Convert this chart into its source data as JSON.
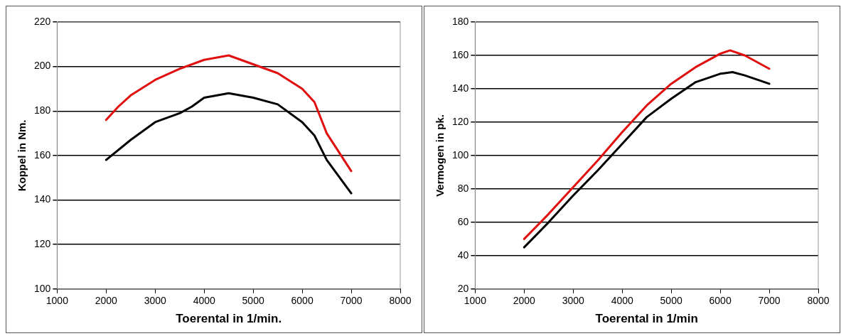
{
  "chart_data": [
    {
      "type": "line",
      "xlabel": "Toerental in 1/min.",
      "ylabel": "Koppel in Nm.",
      "xlim": [
        1000,
        8000
      ],
      "xticks": [
        1000,
        2000,
        3000,
        4000,
        5000,
        6000,
        7000,
        8000
      ],
      "ylim": [
        100,
        220
      ],
      "yticks": [
        100,
        120,
        140,
        160,
        180,
        200,
        220
      ],
      "grid": "y",
      "marker": "none",
      "line_style": "solid",
      "series": [
        {
          "color": "#e01010",
          "x": [
            2000,
            2250,
            2500,
            3000,
            3500,
            4000,
            4500,
            5000,
            5500,
            6000,
            6250,
            6500,
            7000
          ],
          "values": [
            176,
            182,
            187,
            194,
            199,
            203,
            205,
            201,
            197,
            190,
            184,
            170,
            153
          ]
        },
        {
          "color": "#000000",
          "x": [
            2000,
            2500,
            3000,
            3500,
            3750,
            4000,
            4500,
            5000,
            5500,
            6000,
            6250,
            6500,
            7000
          ],
          "values": [
            158,
            167,
            175,
            179,
            182,
            186,
            188,
            186,
            183,
            175,
            169,
            158,
            143
          ]
        }
      ]
    },
    {
      "type": "line",
      "xlabel": "Toerental in 1/min",
      "ylabel": "Vermogen in pk.",
      "xlim": [
        1000,
        8000
      ],
      "xticks": [
        1000,
        2000,
        3000,
        4000,
        5000,
        6000,
        7000,
        8000
      ],
      "ylim": [
        20,
        180
      ],
      "yticks": [
        20,
        40,
        60,
        80,
        100,
        120,
        140,
        160,
        180
      ],
      "grid": "y",
      "marker": "none",
      "line_style": "solid",
      "series": [
        {
          "color": "#e01010",
          "x": [
            2000,
            2500,
            3000,
            3500,
            4000,
            4500,
            5000,
            5500,
            6000,
            6200,
            6500,
            7000
          ],
          "values": [
            50,
            65,
            81,
            97,
            114,
            130,
            143,
            153,
            161,
            163,
            160,
            152
          ]
        },
        {
          "color": "#000000",
          "x": [
            2000,
            2500,
            3000,
            3500,
            4000,
            4500,
            5000,
            5500,
            6000,
            6250,
            6500,
            7000
          ],
          "values": [
            45,
            60,
            76,
            91,
            107,
            123,
            134,
            144,
            149,
            150,
            148,
            143
          ]
        }
      ]
    }
  ]
}
